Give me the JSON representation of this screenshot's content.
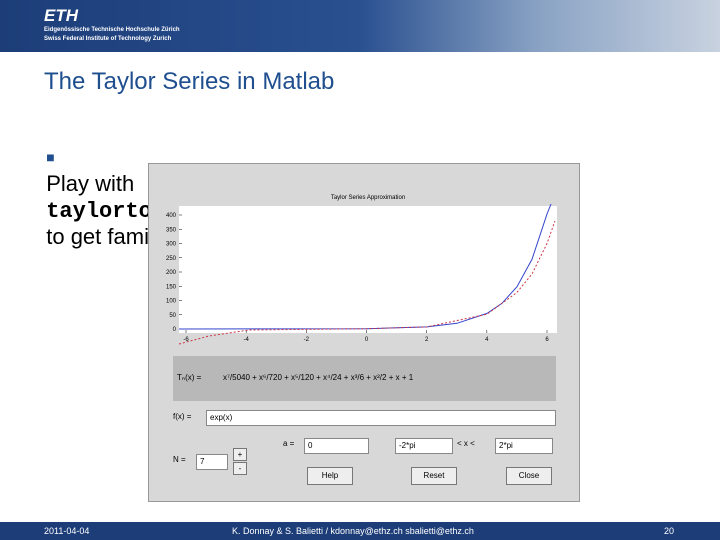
{
  "header": {
    "logo": "ETH",
    "line1": "Eidgenössische Technische Hochschule Zürich",
    "line2": "Swiss Federal Institute of Technology Zurich"
  },
  "title": "The Taylor Series in Matlab",
  "bullet": {
    "before": "Play with",
    "code": "taylortool",
    "after": "to get familiar Taylor Series"
  },
  "tool": {
    "plot": {
      "title": "Taylor Series Approximation",
      "xticks": [
        -6,
        -4,
        -2,
        0,
        2,
        4,
        6
      ],
      "yticks": [
        0,
        50,
        100,
        150,
        200,
        250,
        300,
        350,
        400
      ]
    },
    "tn_label": "Tₙ(x) =",
    "tn_expr": "x⁷/5040 + x⁶/720 + x⁵/120 + x⁴/24 + x³/6 + x²/2 + x + 1",
    "f_label": "f(x) =",
    "f_value": "exp(x)",
    "n_label": "N =",
    "n_value": "7",
    "plus": "+",
    "minus": "-",
    "a_label": "a =",
    "a_value": "0",
    "x_min": "-2*pi",
    "x_range_label": "< x <",
    "x_max": "2*pi",
    "buttons": [
      "Help",
      "Reset",
      "Close"
    ]
  },
  "footer": {
    "date": "2011-04-04",
    "authors": "K. Donnay & S. Balietti / kdonnay@ethz.ch  sbalietti@ethz.ch",
    "page": "20"
  }
}
